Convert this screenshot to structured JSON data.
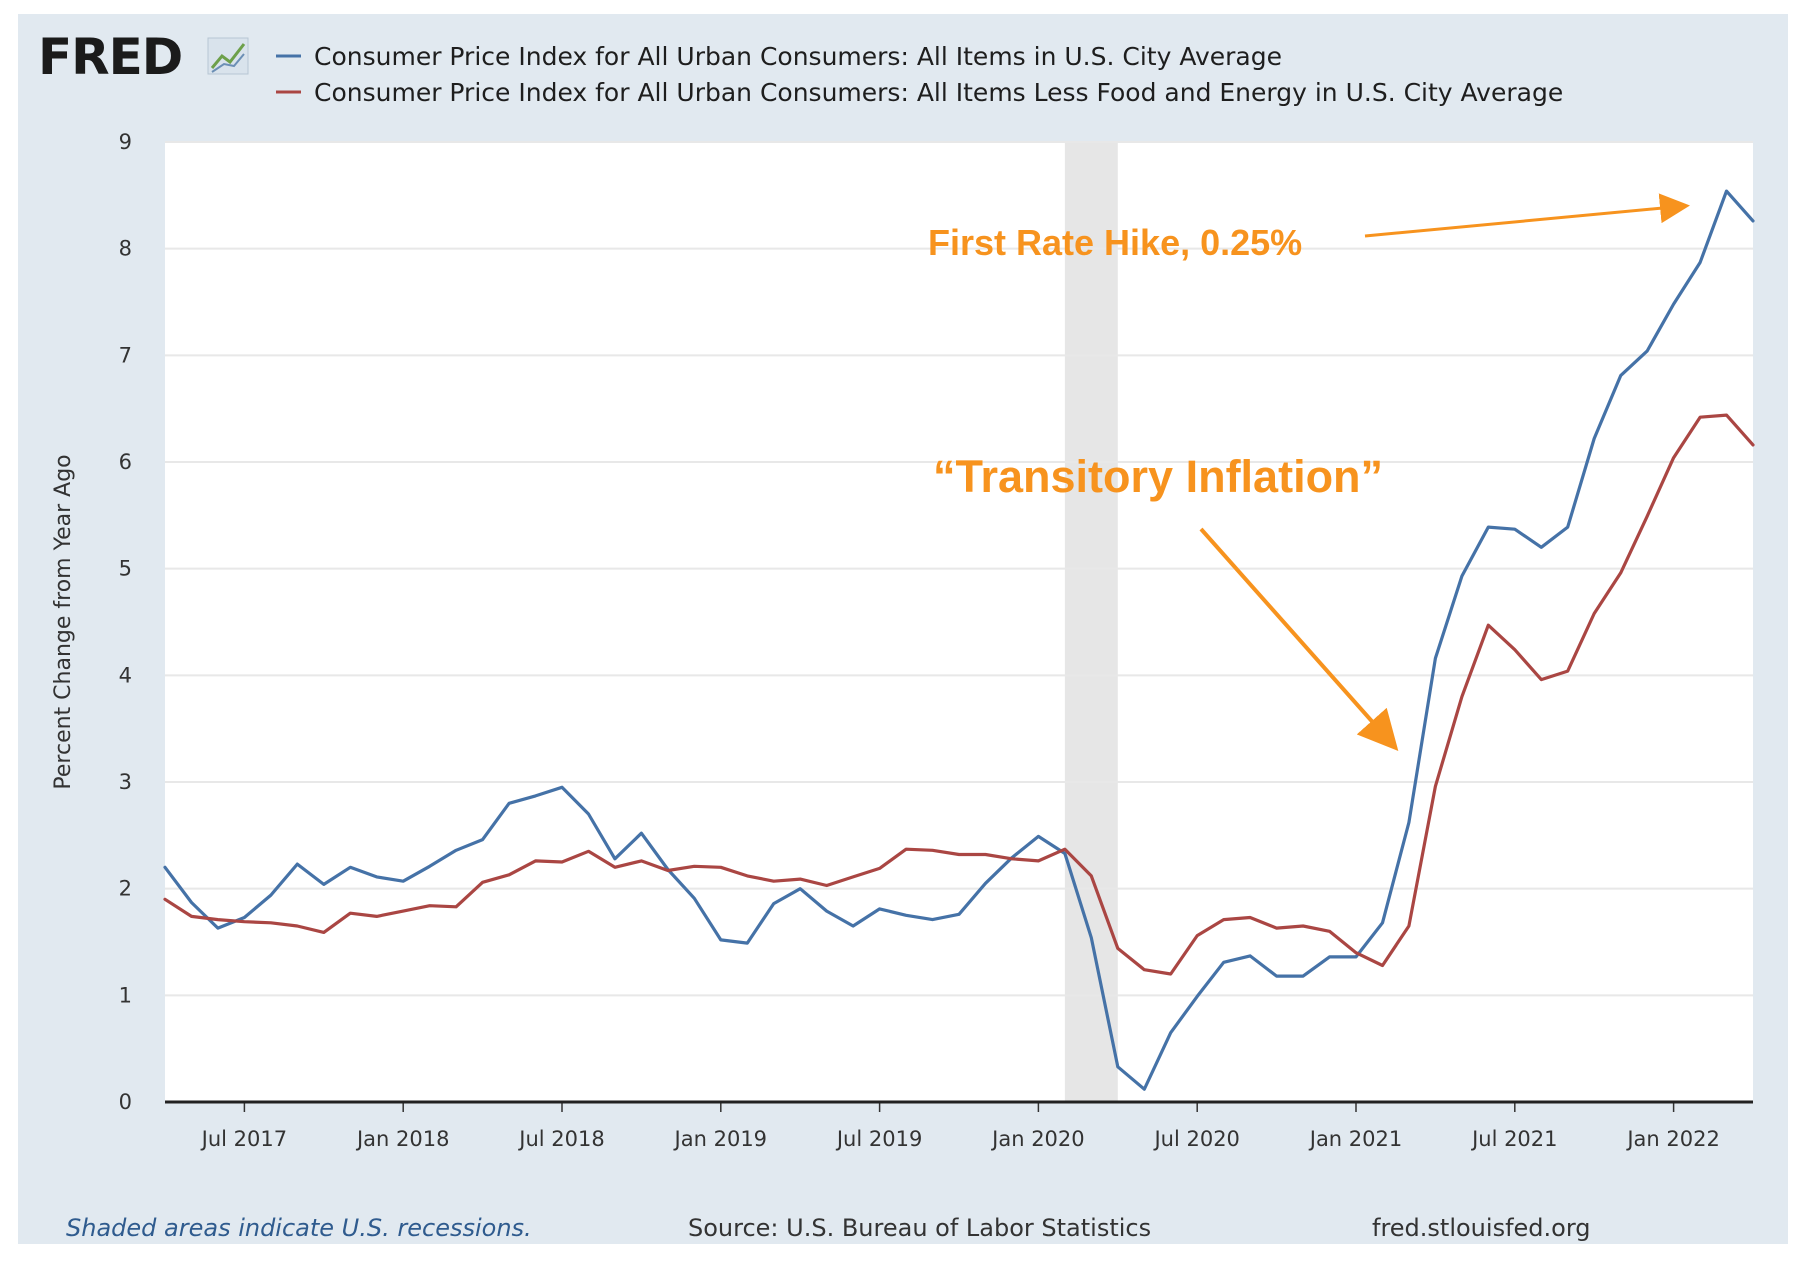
{
  "brand": {
    "logo_text": "FRED"
  },
  "chart_data": {
    "type": "line",
    "title": "",
    "ylabel": "Percent Change from Year Ago",
    "xlabel": "",
    "ylim": [
      0,
      9
    ],
    "yticks": [
      "0",
      "1",
      "2",
      "3",
      "4",
      "5",
      "6",
      "7",
      "8",
      "9"
    ],
    "xticks": [
      {
        "label": "Jul 2017",
        "month_index": 3
      },
      {
        "label": "Jan 2018",
        "month_index": 9
      },
      {
        "label": "Jul 2018",
        "month_index": 15
      },
      {
        "label": "Jan 2019",
        "month_index": 21
      },
      {
        "label": "Jul 2019",
        "month_index": 27
      },
      {
        "label": "Jan 2020",
        "month_index": 33
      },
      {
        "label": "Jul 2020",
        "month_index": 39
      },
      {
        "label": "Jan 2021",
        "month_index": 45
      },
      {
        "label": "Jul 2021",
        "month_index": 51
      },
      {
        "label": "Jan 2022",
        "month_index": 57
      }
    ],
    "x_range_months": [
      0,
      60
    ],
    "start_month": "Apr 2017",
    "recessions": [
      {
        "start_index": 34,
        "end_index": 36
      }
    ],
    "series": [
      {
        "name": "Consumer Price Index for All Urban Consumers: All Items in U.S. City Average",
        "color": "#4572a7",
        "values": [
          2.2,
          1.87,
          1.63,
          1.73,
          1.94,
          2.23,
          2.04,
          2.2,
          2.11,
          2.07,
          2.21,
          2.36,
          2.46,
          2.8,
          2.87,
          2.95,
          2.7,
          2.28,
          2.52,
          2.18,
          1.91,
          1.52,
          1.49,
          1.86,
          2.0,
          1.79,
          1.65,
          1.81,
          1.75,
          1.71,
          1.76,
          2.05,
          2.29,
          2.49,
          2.33,
          1.54,
          0.33,
          0.12,
          0.65,
          0.99,
          1.31,
          1.37,
          1.18,
          1.18,
          1.36,
          1.36,
          1.68,
          2.62,
          4.16,
          4.93,
          5.39,
          5.37,
          5.2,
          5.39,
          6.22,
          6.81,
          7.04,
          7.48,
          7.87,
          8.54,
          8.26
        ]
      },
      {
        "name": "Consumer Price Index for All Urban Consumers: All Items Less Food and Energy in U.S. City Average",
        "color": "#aa4643",
        "values": [
          1.9,
          1.74,
          1.71,
          1.69,
          1.68,
          1.65,
          1.59,
          1.77,
          1.74,
          1.79,
          1.84,
          1.83,
          2.06,
          2.13,
          2.26,
          2.25,
          2.35,
          2.2,
          2.26,
          2.17,
          2.21,
          2.2,
          2.12,
          2.07,
          2.09,
          2.03,
          2.11,
          2.19,
          2.37,
          2.36,
          2.32,
          2.32,
          2.28,
          2.26,
          2.37,
          2.12,
          1.44,
          1.24,
          1.2,
          1.56,
          1.71,
          1.73,
          1.63,
          1.65,
          1.6,
          1.4,
          1.28,
          1.65,
          2.96,
          3.8,
          4.47,
          4.24,
          3.96,
          4.04,
          4.58,
          4.96,
          5.49,
          6.04,
          6.42,
          6.44,
          6.16
        ]
      }
    ],
    "annotations": [
      {
        "text": "First Rate Hike, 0.25%",
        "color": "#f7931e"
      },
      {
        "text": "“Transitory Inflation”",
        "color": "#f7931e"
      }
    ]
  },
  "footer": {
    "recession_note": "Shaded areas indicate U.S. recessions.",
    "source": "Source: U.S. Bureau of Labor Statistics",
    "site": "fred.stlouisfed.org"
  }
}
